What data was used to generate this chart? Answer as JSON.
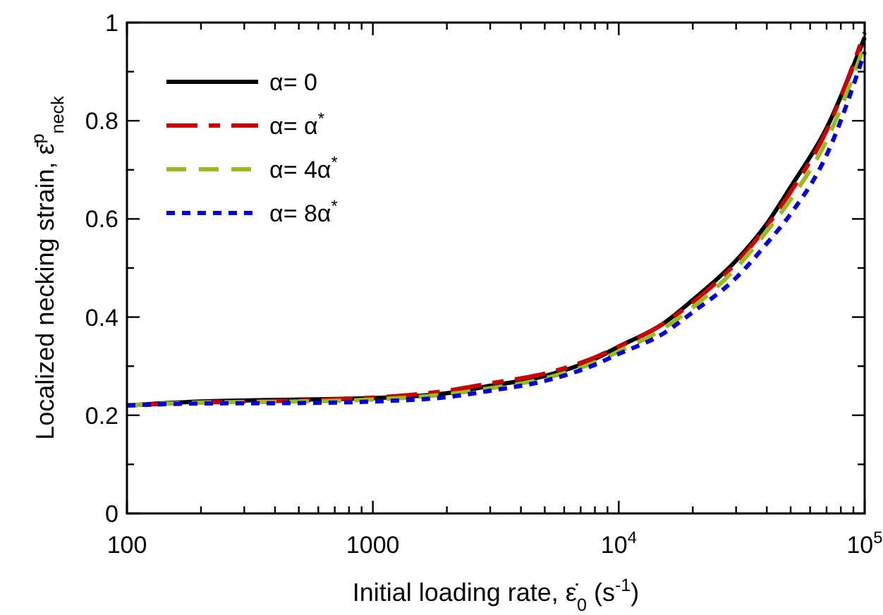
{
  "chart_data": {
    "type": "line",
    "xlabel": "Initial loading rate, ε̇$_{0}$ (s$^{-1}$)",
    "ylabel": "Localized necking strain, ε̄$^{p}$$_{neck}$",
    "log": "x",
    "xlim": [
      100,
      100000
    ],
    "ylim": [
      0,
      1
    ],
    "xticks": [
      100,
      {
        "value": 200,
        "label": null
      },
      {
        "value": 300,
        "label": null
      },
      {
        "value": 400,
        "label": null
      },
      {
        "value": 500,
        "label": null
      },
      {
        "value": 600,
        "label": null
      },
      {
        "value": 700,
        "label": null
      },
      {
        "value": 800,
        "label": null
      },
      {
        "value": 900,
        "label": null
      },
      1000,
      {
        "value": 2000,
        "label": null
      },
      {
        "value": 3000,
        "label": null
      },
      {
        "value": 4000,
        "label": null
      },
      {
        "value": 5000,
        "label": null
      },
      {
        "value": 6000,
        "label": null
      },
      {
        "value": 7000,
        "label": null
      },
      {
        "value": 8000,
        "label": null
      },
      {
        "value": 9000,
        "label": null
      },
      {
        "value": 10000,
        "label": "10$^{4}$"
      },
      {
        "value": 20000,
        "label": null
      },
      {
        "value": 30000,
        "label": null
      },
      {
        "value": 40000,
        "label": null
      },
      {
        "value": 50000,
        "label": null
      },
      {
        "value": 60000,
        "label": null
      },
      {
        "value": 70000,
        "label": null
      },
      {
        "value": 80000,
        "label": null
      },
      {
        "value": 90000,
        "label": null
      },
      {
        "value": 100000,
        "label": "10$^{5}$"
      }
    ],
    "yticks": [
      0,
      {
        "value": 0.1,
        "label": null
      },
      0.2,
      {
        "value": 0.3,
        "label": null
      },
      0.4,
      {
        "value": 0.5,
        "label": null
      },
      0.6,
      {
        "value": 0.7,
        "label": null
      },
      0.8,
      {
        "value": 0.9,
        "label": null
      },
      1
    ],
    "grid": false,
    "legend": "top left",
    "marker": "none",
    "x": [
      100,
      200,
      500,
      1000,
      2000,
      3000,
      5000,
      8000,
      10000,
      15000,
      20000,
      30000,
      40000,
      50000,
      70000,
      100000
    ],
    "series": [
      {
        "name": "α= 0",
        "color": "#000000",
        "line_style": "solid",
        "values": [
          0.22,
          0.228,
          0.232,
          0.235,
          0.245,
          0.26,
          0.28,
          0.315,
          0.34,
          0.385,
          0.435,
          0.515,
          0.59,
          0.665,
          0.785,
          0.97
        ]
      },
      {
        "name": "α= α$^{*}$",
        "color": "#cc0000",
        "line_style": "dashdot",
        "values": [
          0.22,
          0.226,
          0.23,
          0.236,
          0.25,
          0.265,
          0.285,
          0.318,
          0.34,
          0.385,
          0.43,
          0.51,
          0.585,
          0.655,
          0.78,
          0.98
        ]
      },
      {
        "name": "α= 4α$^{*}$",
        "color": "#99bb22",
        "line_style": "dashed",
        "values": [
          0.22,
          0.226,
          0.228,
          0.232,
          0.243,
          0.255,
          0.275,
          0.308,
          0.33,
          0.375,
          0.42,
          0.5,
          0.575,
          0.64,
          0.76,
          0.955
        ]
      },
      {
        "name": "α= 8α$^{*}$",
        "color": "#0000dd",
        "line_style": "dotted",
        "values": [
          0.22,
          0.224,
          0.225,
          0.228,
          0.237,
          0.25,
          0.27,
          0.303,
          0.325,
          0.365,
          0.41,
          0.48,
          0.55,
          0.61,
          0.73,
          0.94
        ]
      }
    ]
  }
}
